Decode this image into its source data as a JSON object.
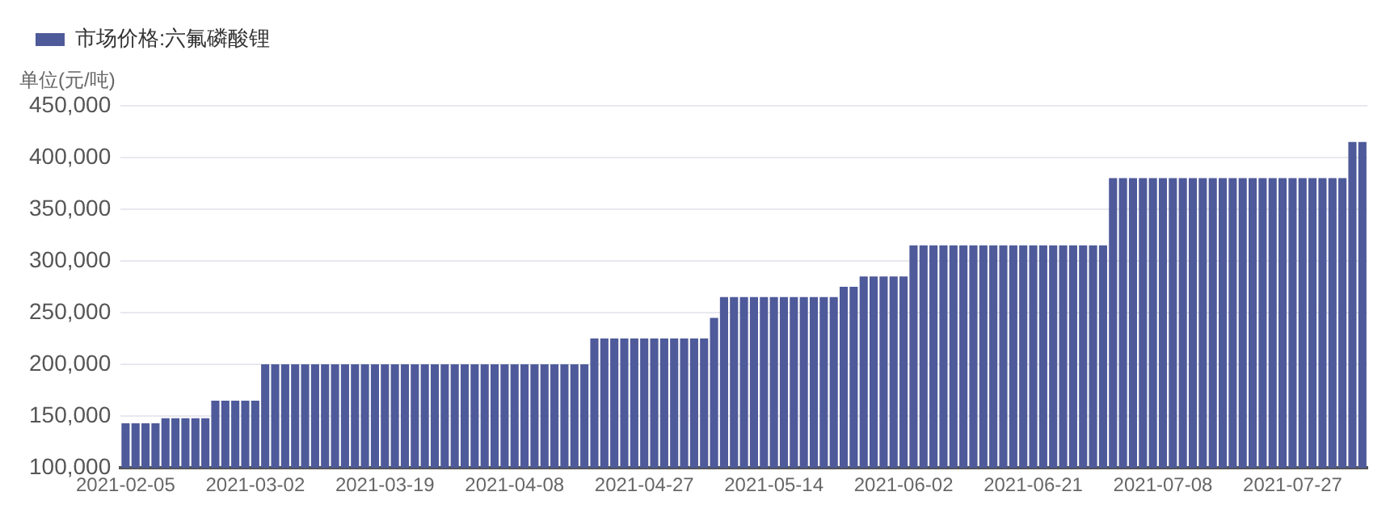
{
  "chart_data": {
    "type": "bar",
    "ylabel": "单位(元/吨)",
    "legend": "top left",
    "grid": "y",
    "categories": [
      "2021-02-05",
      null,
      null,
      null,
      null,
      null,
      null,
      null,
      null,
      null,
      null,
      null,
      null,
      "2021-03-02",
      null,
      null,
      null,
      null,
      null,
      null,
      null,
      null,
      null,
      null,
      null,
      null,
      "2021-03-19",
      null,
      null,
      null,
      null,
      null,
      null,
      null,
      null,
      null,
      null,
      null,
      null,
      "2021-04-08",
      null,
      null,
      null,
      null,
      null,
      null,
      null,
      null,
      null,
      null,
      null,
      null,
      "2021-04-27",
      null,
      null,
      null,
      null,
      null,
      null,
      null,
      null,
      null,
      null,
      null,
      null,
      "2021-05-14",
      null,
      null,
      null,
      null,
      null,
      null,
      null,
      null,
      null,
      null,
      null,
      null,
      "2021-06-02",
      null,
      null,
      null,
      null,
      null,
      null,
      null,
      null,
      null,
      null,
      null,
      null,
      "2021-06-21",
      null,
      null,
      null,
      null,
      null,
      null,
      null,
      null,
      null,
      null,
      null,
      null,
      "2021-07-08",
      null,
      null,
      null,
      null,
      null,
      null,
      null,
      null,
      null,
      null,
      null,
      null,
      "2021-07-27",
      null,
      null,
      null,
      null,
      null,
      null,
      null
    ],
    "series": [
      {
        "name": "市场价格:六氟磷酸锂",
        "color": "#4e5a9a",
        "values": [
          143000,
          143000,
          143000,
          143000,
          148000,
          148000,
          148000,
          148000,
          148000,
          165000,
          165000,
          165000,
          165000,
          165000,
          200000,
          200000,
          200000,
          200000,
          200000,
          200000,
          200000,
          200000,
          200000,
          200000,
          200000,
          200000,
          200000,
          200000,
          200000,
          200000,
          200000,
          200000,
          200000,
          200000,
          200000,
          200000,
          200000,
          200000,
          200000,
          200000,
          200000,
          200000,
          200000,
          200000,
          200000,
          200000,
          200000,
          225000,
          225000,
          225000,
          225000,
          225000,
          225000,
          225000,
          225000,
          225000,
          225000,
          225000,
          225000,
          245000,
          265000,
          265000,
          265000,
          265000,
          265000,
          265000,
          265000,
          265000,
          265000,
          265000,
          265000,
          265000,
          275000,
          275000,
          285000,
          285000,
          285000,
          285000,
          285000,
          315000,
          315000,
          315000,
          315000,
          315000,
          315000,
          315000,
          315000,
          315000,
          315000,
          315000,
          315000,
          315000,
          315000,
          315000,
          315000,
          315000,
          315000,
          315000,
          315000,
          380000,
          380000,
          380000,
          380000,
          380000,
          380000,
          380000,
          380000,
          380000,
          380000,
          380000,
          380000,
          380000,
          380000,
          380000,
          380000,
          380000,
          380000,
          380000,
          380000,
          380000,
          380000,
          380000,
          380000,
          415000,
          415000
        ]
      }
    ],
    "ylim": [
      100000,
      450000
    ],
    "yticks": [
      {
        "value": 100000,
        "label": "100,000"
      },
      {
        "value": 150000,
        "label": "150,000"
      },
      {
        "value": 200000,
        "label": "200,000"
      },
      {
        "value": 250000,
        "label": "250,000"
      },
      {
        "value": 300000,
        "label": "300,000"
      },
      {
        "value": 350000,
        "label": "350,000"
      },
      {
        "value": 400000,
        "label": "400,000"
      },
      {
        "value": 450000,
        "label": "450,000"
      }
    ]
  }
}
